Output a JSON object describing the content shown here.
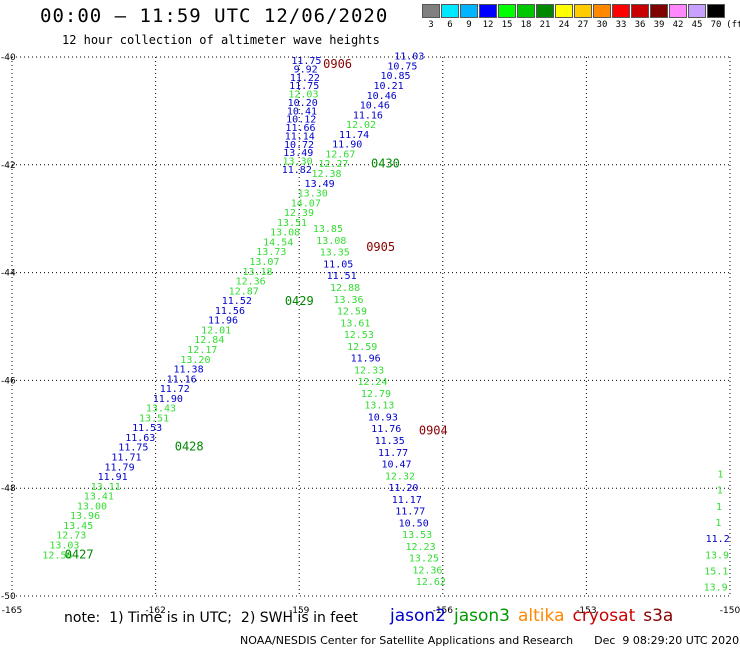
{
  "header": {
    "title": "00:00 – 11:59 UTC 12/06/2020",
    "subtitle": "12 hour collection of altimeter wave heights"
  },
  "legend": {
    "unit": "(ft)",
    "bins": [
      {
        "label": "3",
        "color": "#808080"
      },
      {
        "label": "6",
        "color": "#00e8ff"
      },
      {
        "label": "9",
        "color": "#00b4ff"
      },
      {
        "label": "12",
        "color": "#0000ff"
      },
      {
        "label": "15",
        "color": "#00ff00"
      },
      {
        "label": "18",
        "color": "#00c800"
      },
      {
        "label": "21",
        "color": "#008800"
      },
      {
        "label": "24",
        "color": "#ffff00"
      },
      {
        "label": "27",
        "color": "#ffcc00"
      },
      {
        "label": "30",
        "color": "#ff8800"
      },
      {
        "label": "33",
        "color": "#ff0000"
      },
      {
        "label": "36",
        "color": "#c80000"
      },
      {
        "label": "39",
        "color": "#800000"
      },
      {
        "label": "42",
        "color": "#ff88ff"
      },
      {
        "label": "45",
        "color": "#c8a0ff"
      },
      {
        "label": "70",
        "color": "#000000"
      }
    ]
  },
  "footer": {
    "note": "note:  1) Time is in UTC;  2) SWH is in feet",
    "credit": "NOAA/NESDIS Center for Satellite Applications and Research      Dec  9 08:29:20 UTC 2020",
    "satellites": [
      {
        "name": "jason2",
        "color": "#0000cc"
      },
      {
        "name": "jason3",
        "color": "#009900"
      },
      {
        "name": "altika",
        "color": "#ff8800"
      },
      {
        "name": "cryosat",
        "color": "#cc0000"
      },
      {
        "name": "s3a",
        "color": "#880000"
      }
    ]
  },
  "chart_data": {
    "type": "scatter",
    "x_range": [
      -165,
      -150
    ],
    "y_range": [
      -50,
      -40
    ],
    "x_ticks": [
      "-165",
      "-162",
      "-159",
      "-156",
      "-153",
      "-150"
    ],
    "y_ticks": [
      "-40",
      "-42",
      "-44",
      "-46",
      "-48",
      "-50"
    ],
    "grid": true,
    "colors": {
      "j2": "#0000cc",
      "j3": "#33dd33",
      "s3a": "#880000",
      "j3lbl": "#008800"
    },
    "track_labels": [
      {
        "text": "0906",
        "lon": -158.5,
        "lat": -40.2,
        "sat": "s3a"
      },
      {
        "text": "0430",
        "lon": -157.5,
        "lat": -42.05,
        "sat": "j3lbl"
      },
      {
        "text": "0905",
        "lon": -157.6,
        "lat": -43.6,
        "sat": "s3a"
      },
      {
        "text": "0429",
        "lon": -159.3,
        "lat": -44.6,
        "sat": "j3lbl"
      },
      {
        "text": "0904",
        "lon": -156.5,
        "lat": -47.0,
        "sat": "s3a"
      },
      {
        "text": "0428",
        "lon": -161.6,
        "lat": -47.3,
        "sat": "j3lbl"
      },
      {
        "text": "0427",
        "lon": -163.9,
        "lat": -49.3,
        "sat": "j3lbl"
      }
    ],
    "tracks": [
      {
        "sat": "j2",
        "lon0": -158.85,
        "lat0": -40.13,
        "lon1": -159.05,
        "lat1": -42.15,
        "values": [
          "11.75",
          "9.92",
          "11.22",
          "11.75",
          "12.03",
          "10.20",
          "10.41",
          "10.12",
          "11.66",
          "11.14",
          "10.72",
          "13.49",
          "13.30",
          "11.82"
        ],
        "sat_seq": [
          "j2",
          "j2",
          "j2",
          "j2",
          "j3",
          "j2",
          "j2",
          "j2",
          "j2",
          "j2",
          "j2",
          "j2",
          "j3",
          "j2"
        ]
      },
      {
        "sat": "j2",
        "lon0": -156.7,
        "lat0": -40.05,
        "lon1": -158.35,
        "lat1": -43.1,
        "values": [
          "11.03",
          "10.75",
          "10.85",
          "10.21",
          "10.46",
          "10.46",
          "11.16",
          "12.02",
          "11.74",
          "11.90",
          "12.67",
          "12.27",
          "12.38",
          "13.49",
          "13.30",
          "14.07",
          "12.39",
          "13.51",
          "13.08",
          "14.54",
          "13.73",
          "13.07",
          "13.18",
          "12.36",
          "12.87",
          "11.52",
          "11.56",
          "11.96",
          "12.01",
          "12.84",
          "12.17",
          "13.20",
          "11.38",
          "11.16",
          "11.72",
          "11.90",
          "13.43",
          "13.51",
          "11.53",
          "11.63",
          "11.75",
          "11.71",
          "11.79",
          "11.91",
          "13.11",
          "13.41",
          "13.00",
          "13.96",
          "13.45",
          "12.73",
          "13.03",
          "12.56"
        ],
        "sat_seq": [
          "j2",
          "j2",
          "j2",
          "j2",
          "j2",
          "j2",
          "j2",
          "j3",
          "j2",
          "j2",
          "j3",
          "j3",
          "j3",
          "j2",
          "j3",
          "j3",
          "j3",
          "j3",
          "j3",
          "j3",
          "j3",
          "j3",
          "j3",
          "j3",
          "j3",
          "j2",
          "j2",
          "j2",
          "j3",
          "j3",
          "j3",
          "j3",
          "j2",
          "j2",
          "j2",
          "j2",
          "j3",
          "j3",
          "j2",
          "j2",
          "j2",
          "j2",
          "j2",
          "j2",
          "j3",
          "j3",
          "j3",
          "j3",
          "j3",
          "j3",
          "j3",
          "j3"
        ],
        "lon_end": -164.05,
        "lat_end": -49.3
      },
      {
        "sat": "j3",
        "lon0": -158.4,
        "lat0": -43.25,
        "lon1": -156.25,
        "lat1": -49.8,
        "values": [
          "13.85",
          "13.08",
          "13.35",
          "11.05",
          "11.51",
          "12.88",
          "13.36",
          "12.59",
          "13.61",
          "12.53",
          "12.59",
          "11.96",
          "12.33",
          "12.24",
          "12.79",
          "13.13",
          "10.93",
          "11.76",
          "11.35",
          "11.77",
          "10.47",
          "12.32",
          "11.20",
          "11.17",
          "11.77",
          "10.50",
          "13.53",
          "12.23",
          "13.25",
          "12.36",
          "12.62"
        ],
        "sat_seq": [
          "j3",
          "j3",
          "j3",
          "j2",
          "j2",
          "j3",
          "j3",
          "j3",
          "j3",
          "j3",
          "j3",
          "j2",
          "j3",
          "j3",
          "j3",
          "j3",
          "j2",
          "j2",
          "j2",
          "j2",
          "j2",
          "j3",
          "j2",
          "j2",
          "j2",
          "j2",
          "j3",
          "j3",
          "j3",
          "j3",
          "j3"
        ]
      },
      {
        "sat": "j3",
        "lon0": -150.2,
        "lat0": -47.8,
        "lon1": -150.3,
        "lat1": -49.9,
        "values": [
          "1",
          "1",
          "1",
          "1",
          "11.2",
          "13.9",
          "15.1",
          "13.9"
        ],
        "sat_seq": [
          "j3",
          "j3",
          "j3",
          "j3",
          "j2",
          "j3",
          "j3",
          "j3"
        ]
      }
    ]
  }
}
